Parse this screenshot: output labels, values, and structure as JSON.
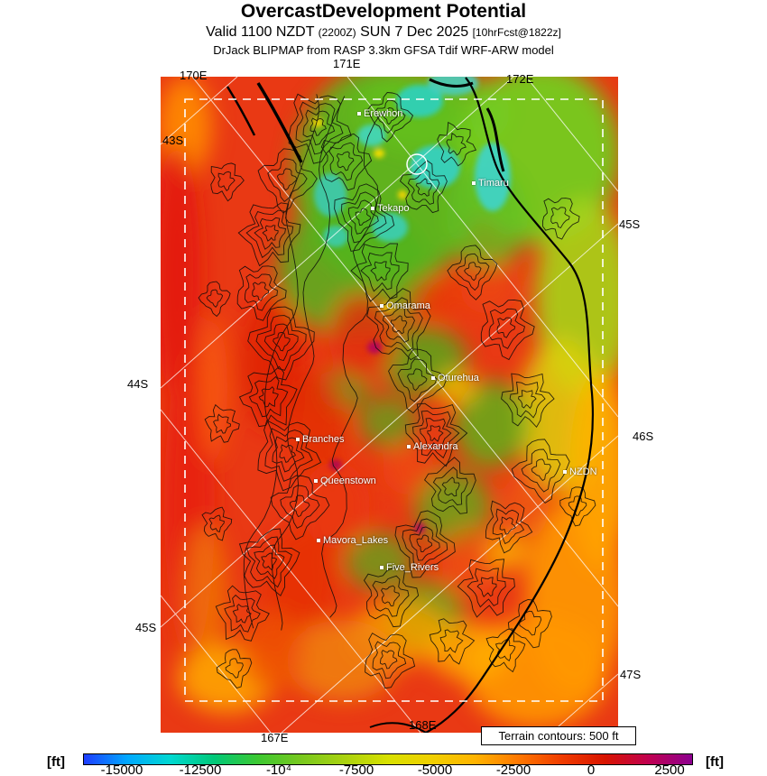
{
  "header": {
    "title": "OvercastDevelopment Potential",
    "valid": {
      "prefix": "Valid 1100 NZDT",
      "zulu": "(2200Z)",
      "date": "SUN 7 Dec 2025",
      "fcst": "[10hrFcst@1822z]"
    },
    "model": "DrJack BLIPMAP from RASP 3.3km GFSA Tdif WRF-ARW model"
  },
  "map": {
    "grid_labels": [
      "170E",
      "171E",
      "172E",
      "43S",
      "44S",
      "45S",
      "45S",
      "46S",
      "47S",
      "167E",
      "168E"
    ],
    "places": [
      "Erewhon",
      "Timaru",
      "Tekapo",
      "Omarama",
      "Oturehua",
      "Branches",
      "Alexandra",
      "Queenstown",
      "NZDN",
      "Mavora_Lakes",
      "Five_Rivers"
    ],
    "legend": "Terrain contours: 500 ft"
  },
  "colorbar": {
    "unit": "[ft]",
    "ticks": [
      "-15000",
      "-12500",
      "-10⁴",
      "-7500",
      "-5000",
      "-2500",
      "0",
      "2500"
    ],
    "colors": [
      "#1e3cff",
      "#00a8ff",
      "#00d8d0",
      "#00c878",
      "#3cc832",
      "#78c81e",
      "#aad20f",
      "#d8e000",
      "#f0d000",
      "#ffb400",
      "#ff7800",
      "#f03c00",
      "#d81400",
      "#c00050",
      "#8c0090"
    ]
  }
}
